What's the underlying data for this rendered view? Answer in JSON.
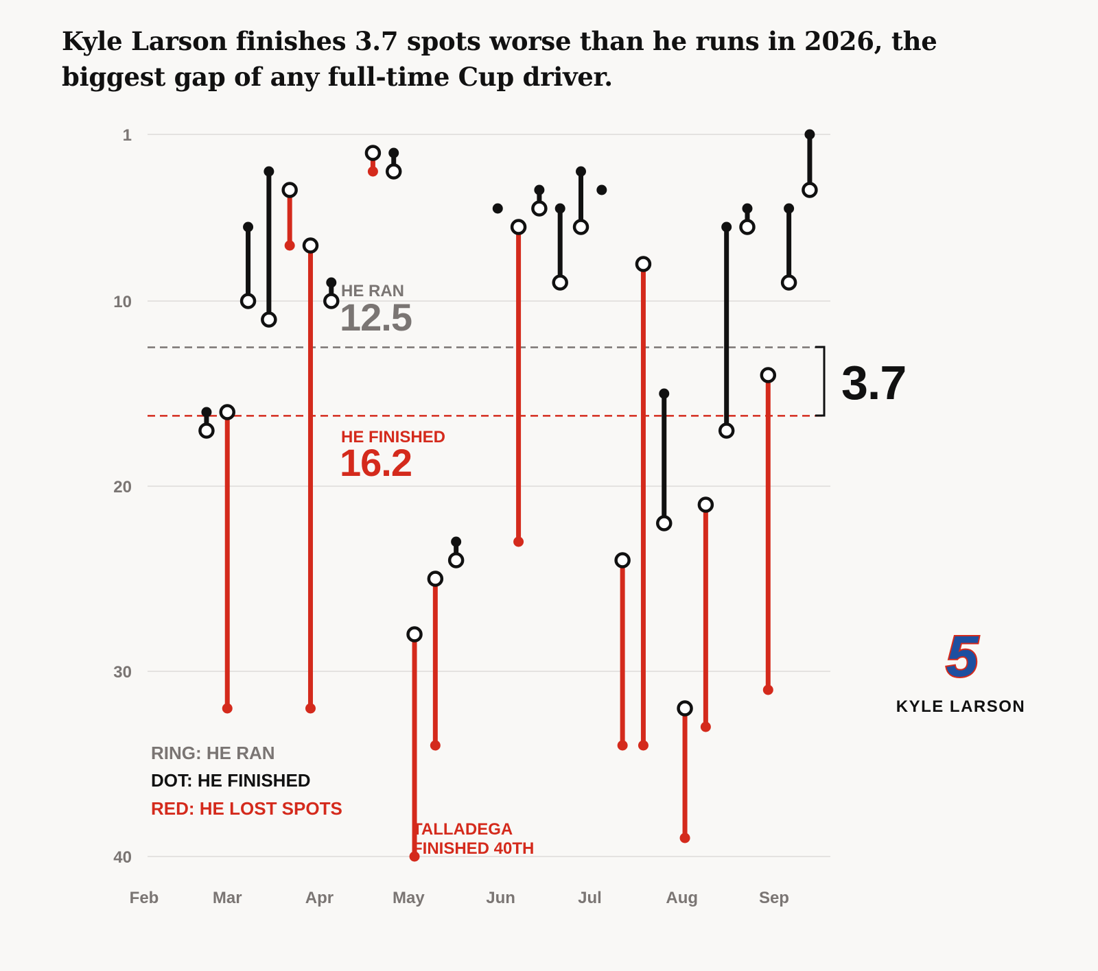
{
  "title": "Kyle Larson finishes 3.7 spots worse than he runs in 2026, the biggest gap of any full-time Cup driver.",
  "colors": {
    "finished": "#111111",
    "lost": "#d42a1c",
    "ran": "#7a7573",
    "grid": "#dddbd8",
    "background": "#f9f8f6"
  },
  "annotations": {
    "ran_label": "HE RAN",
    "ran_value": "12.5",
    "finished_label": "HE FINISHED",
    "finished_value": "16.2",
    "gap_value": "3.7",
    "talladega_line1": "TALLADEGA",
    "talladega_line2": "FINISHED 40TH"
  },
  "legend": {
    "ring": "RING: HE RAN",
    "dot": "DOT: HE FINISHED",
    "red": "RED: HE LOST SPOTS"
  },
  "brand": {
    "number": "5",
    "name": "KYLE LARSON"
  },
  "chart_data": {
    "type": "dumbbell",
    "y_axis": {
      "reversed": true,
      "ylim": [
        1,
        40
      ],
      "ticks": [
        1,
        10,
        20,
        30,
        40
      ]
    },
    "x_axis": {
      "ticks": [
        "Feb",
        "Mar",
        "Apr",
        "May",
        "Jun",
        "Jul",
        "Aug",
        "Sep"
      ]
    },
    "grid": true,
    "reference_lines": [
      {
        "label": "HE RAN",
        "value": 12.5,
        "style": "dashed"
      },
      {
        "label": "HE FINISHED",
        "value": 16.2,
        "style": "dashed"
      }
    ],
    "races": [
      {
        "date": "2026-02-22",
        "ran": 17,
        "finished": 16
      },
      {
        "date": "2026-03-01",
        "ran": 16,
        "finished": 32
      },
      {
        "date": "2026-03-08",
        "ran": 10,
        "finished": 6
      },
      {
        "date": "2026-03-15",
        "ran": 11,
        "finished": 3
      },
      {
        "date": "2026-03-22",
        "ran": 4,
        "finished": 7
      },
      {
        "date": "2026-03-29",
        "ran": 7,
        "finished": 32
      },
      {
        "date": "2026-04-05",
        "ran": 10,
        "finished": 9
      },
      {
        "date": "2026-04-19",
        "ran": 2,
        "finished": 3
      },
      {
        "date": "2026-04-26",
        "ran": 3,
        "finished": 2
      },
      {
        "date": "2026-05-03",
        "ran": 28,
        "finished": 40
      },
      {
        "date": "2026-05-10",
        "ran": 25,
        "finished": 34
      },
      {
        "date": "2026-05-17",
        "ran": 24,
        "finished": 23
      },
      {
        "date": "2026-05-31",
        "finished": 5
      },
      {
        "date": "2026-06-07",
        "ran": 6,
        "finished": 23
      },
      {
        "date": "2026-06-14",
        "ran": 5,
        "finished": 4
      },
      {
        "date": "2026-06-21",
        "ran": 9,
        "finished": 5
      },
      {
        "date": "2026-06-28",
        "ran": 6,
        "finished": 3
      },
      {
        "date": "2026-07-05",
        "finished": 4
      },
      {
        "date": "2026-07-12",
        "ran": 24,
        "finished": 34
      },
      {
        "date": "2026-07-19",
        "ran": 8,
        "finished": 34
      },
      {
        "date": "2026-07-26",
        "ran": 22,
        "finished": 15
      },
      {
        "date": "2026-08-02",
        "ran": 32,
        "finished": 39
      },
      {
        "date": "2026-08-09",
        "ran": 21,
        "finished": 33
      },
      {
        "date": "2026-08-16",
        "ran": 17,
        "finished": 6
      },
      {
        "date": "2026-08-23",
        "ran": 6,
        "finished": 5
      },
      {
        "date": "2026-08-30",
        "ran": 14,
        "finished": 31
      },
      {
        "date": "2026-09-06",
        "ran": 9,
        "finished": 5
      },
      {
        "date": "2026-09-13",
        "ran": 4,
        "finished": 1
      }
    ]
  }
}
